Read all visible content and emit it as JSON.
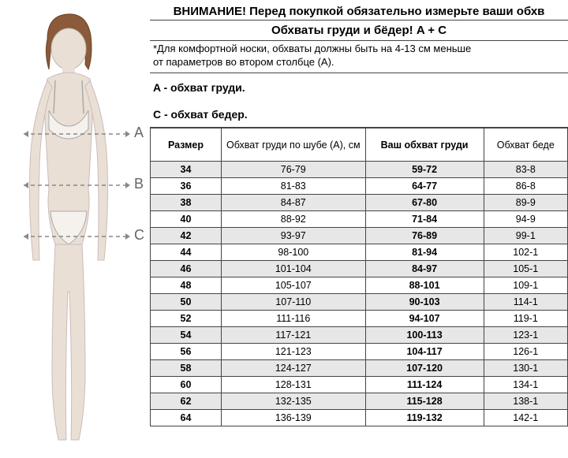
{
  "headline": "ВНИМАНИЕ! Перед покупкой обязательно измерьте ваши обхв",
  "headline2": "Обхваты груди и бёдер! A + C",
  "note1": "*Для комфортной носки, обхваты должны быть на 4-13 см меньше",
  "note2": "от параметров во втором столбце (A).",
  "labelA": "A - обхват груди.",
  "labelC": "C - обхват бедер.",
  "figure": {
    "letterA": "A",
    "letterB": "B",
    "letterC": "C",
    "skin": "#eadfd5",
    "hair": "#8a5a3a",
    "underwear": "#f5f2ed",
    "line": "#777",
    "dash": "#888"
  },
  "table": {
    "headers": [
      "Размер",
      "Обхват груди по шубе (A), см",
      "Ваш обхват груди",
      "Обхват беде"
    ],
    "col_widths": [
      "90px",
      "170px",
      "150px",
      "auto"
    ],
    "rows": [
      {
        "size": "34",
        "a": "76-79",
        "bust": "59-72",
        "hip": "83-8"
      },
      {
        "size": "36",
        "a": "81-83",
        "bust": "64-77",
        "hip": "86-8"
      },
      {
        "size": "38",
        "a": "84-87",
        "bust": "67-80",
        "hip": "89-9"
      },
      {
        "size": "40",
        "a": "88-92",
        "bust": "71-84",
        "hip": "94-9"
      },
      {
        "size": "42",
        "a": "93-97",
        "bust": "76-89",
        "hip": "99-1"
      },
      {
        "size": "44",
        "a": "98-100",
        "bust": "81-94",
        "hip": "102-1"
      },
      {
        "size": "46",
        "a": "101-104",
        "bust": "84-97",
        "hip": "105-1"
      },
      {
        "size": "48",
        "a": "105-107",
        "bust": "88-101",
        "hip": "109-1"
      },
      {
        "size": "50",
        "a": "107-110",
        "bust": "90-103",
        "hip": "114-1"
      },
      {
        "size": "52",
        "a": "111-116",
        "bust": "94-107",
        "hip": "119-1"
      },
      {
        "size": "54",
        "a": "117-121",
        "bust": "100-113",
        "hip": "123-1"
      },
      {
        "size": "56",
        "a": "121-123",
        "bust": "104-117",
        "hip": "126-1"
      },
      {
        "size": "58",
        "a": "124-127",
        "bust": "107-120",
        "hip": "130-1"
      },
      {
        "size": "60",
        "a": "128-131",
        "bust": "111-124",
        "hip": "134-1"
      },
      {
        "size": "62",
        "a": "132-135",
        "bust": "115-128",
        "hip": "138-1"
      },
      {
        "size": "64",
        "a": "136-139",
        "bust": "119-132",
        "hip": "142-1"
      }
    ]
  }
}
